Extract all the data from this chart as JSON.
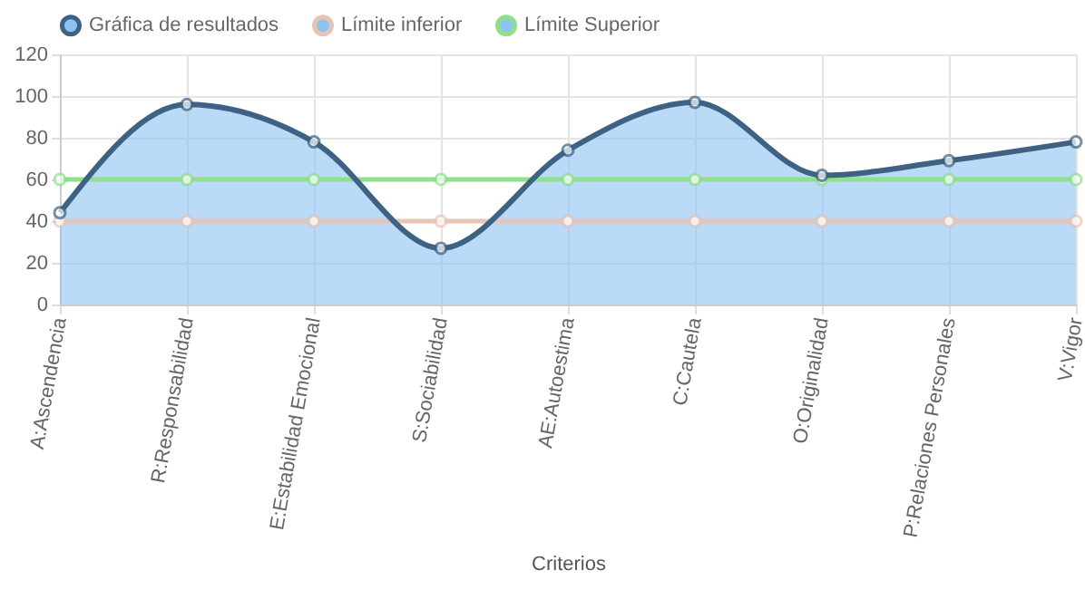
{
  "chart_data": {
    "type": "line",
    "xlabel": "Criterios",
    "categories": [
      "A:Ascendencia",
      "R:Responsabilidad",
      "E:Estabilidad Emocional",
      "S:Sociabilidad",
      "AE:Autoestima",
      "C:Cautela",
      "O:Originalidad",
      "P:Relaciones Personales",
      "V:Vigor"
    ],
    "series": [
      {
        "name": "Gráfica de resultados",
        "type": "area",
        "color": "#3e6283",
        "values": [
          44,
          96,
          78,
          27,
          74,
          97,
          62,
          69,
          78
        ]
      },
      {
        "name": "Límite inferior",
        "color": "#e6c4b6",
        "values": [
          40,
          40,
          40,
          40,
          40,
          40,
          40,
          40,
          40
        ]
      },
      {
        "name": "Límite Superior",
        "color": "#8ee08a",
        "values": [
          60,
          60,
          60,
          60,
          60,
          60,
          60,
          60,
          60
        ]
      }
    ],
    "ylim": [
      0,
      120
    ],
    "yticks": [
      0,
      20,
      40,
      60,
      80,
      100,
      120
    ],
    "grid": true,
    "legend": "top",
    "marker": "circle",
    "line_style": "solid"
  }
}
